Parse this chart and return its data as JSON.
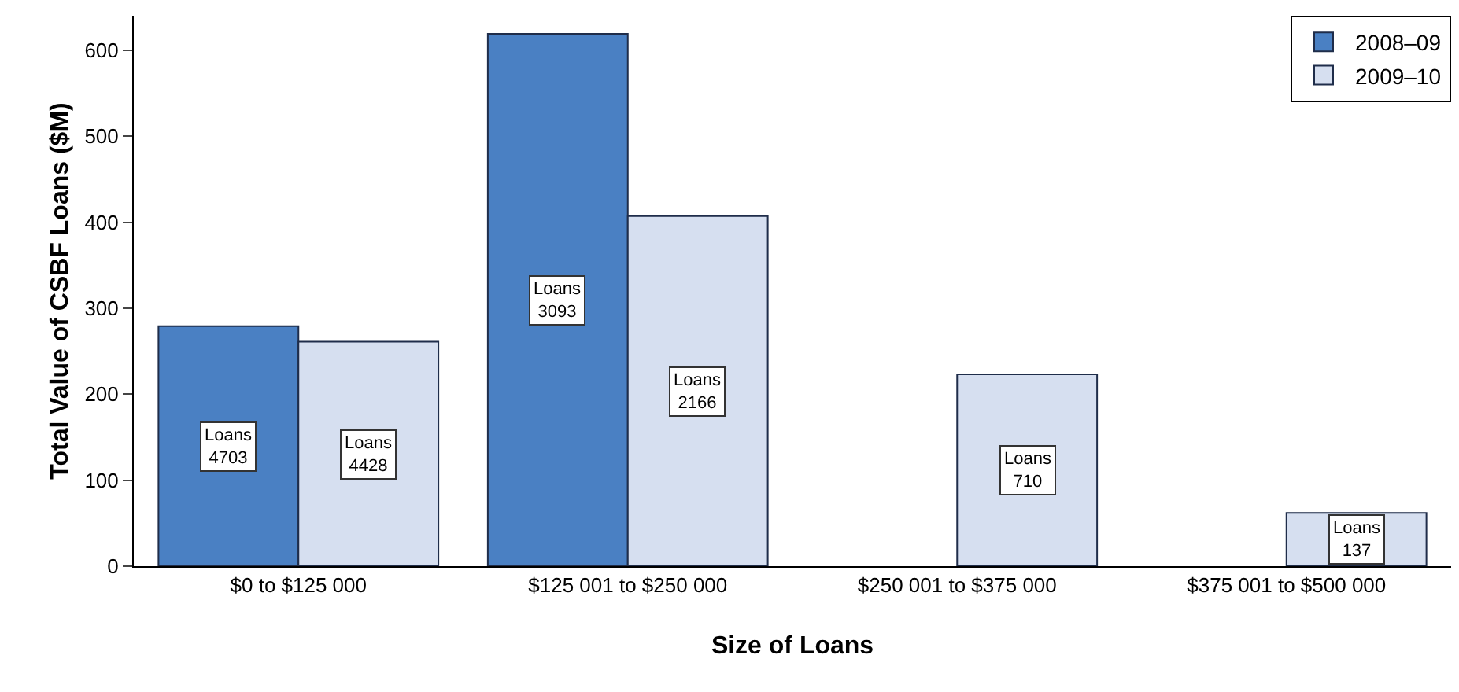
{
  "chart_data": {
    "type": "bar",
    "xlabel": "Size of Loans",
    "ylabel": "Total Value of CSBF Loans ($M)",
    "categories": [
      "$0 to $125 000",
      "$125 001 to $250 000",
      "$250 001 to $375 000",
      "$375 001 to $500 000"
    ],
    "series": [
      {
        "name": "2008–09",
        "color": "#4a80c3",
        "values": [
          279,
          619,
          null,
          null
        ],
        "value_labels": [
          "Loans\n4703",
          "Loans\n3093",
          null,
          null
        ]
      },
      {
        "name": "2009–10",
        "color": "#d6dff0",
        "values": [
          261,
          407,
          223,
          62
        ],
        "value_labels": [
          "Loans\n4428",
          "Loans\n2166",
          "Loans\n710",
          "Loans\n137"
        ]
      }
    ],
    "ylim": [
      0,
      640
    ],
    "yticks": [
      0,
      100,
      200,
      300,
      400,
      500,
      600
    ],
    "grid": false,
    "legend": "top right"
  }
}
